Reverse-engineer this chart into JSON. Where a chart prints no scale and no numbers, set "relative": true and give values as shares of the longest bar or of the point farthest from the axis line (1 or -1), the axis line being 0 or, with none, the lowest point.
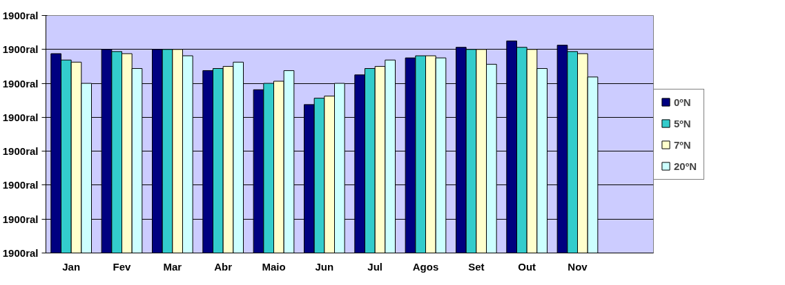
{
  "chart_data": {
    "type": "bar",
    "relative": true,
    "categories": [
      "Jan",
      "Fev",
      "Mar",
      "Abr",
      "Maio",
      "Jun",
      "Jul",
      "Agos",
      "Set",
      "Out",
      "Nov",
      null
    ],
    "series": [
      {
        "name": "0ºN",
        "color": "#000080",
        "values": [
          0.94,
          0.96,
          0.96,
          0.86,
          0.77,
          0.7,
          0.84,
          0.92,
          0.97,
          1,
          0.98,
          null
        ]
      },
      {
        "name": "5ºN",
        "color": "#33cccc",
        "values": [
          0.91,
          0.95,
          0.96,
          0.87,
          0.8,
          0.73,
          0.87,
          0.93,
          0.96,
          0.97,
          0.95,
          null
        ]
      },
      {
        "name": "7ºN",
        "color": "#ffffcc",
        "values": [
          0.9,
          0.94,
          0.96,
          0.88,
          0.81,
          0.74,
          0.88,
          0.93,
          0.96,
          0.96,
          0.94,
          null
        ]
      },
      {
        "name": "20ºN",
        "color": "#ccffff",
        "values": [
          0.8,
          0.87,
          0.93,
          0.9,
          0.86,
          0.8,
          0.91,
          0.92,
          0.89,
          0.87,
          0.83,
          null
        ]
      }
    ],
    "annotations": [
      "1900ral",
      "1900ral",
      "1900ral",
      "1900ral",
      "1900ral",
      "1900ral",
      "1900ral",
      "1900ral"
    ],
    "grid": "y",
    "legend": "right"
  }
}
